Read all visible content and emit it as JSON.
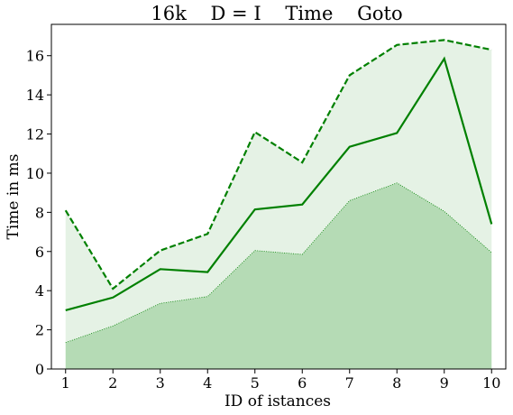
{
  "chart_data": {
    "type": "area",
    "title": "16k    D = I    Time    Goto",
    "xlabel": "ID of istances",
    "ylabel": "Time in ms",
    "x": [
      1,
      2,
      3,
      4,
      5,
      6,
      7,
      8,
      9,
      10
    ],
    "x_ticks": [
      "1",
      "2",
      "3",
      "4",
      "5",
      "6",
      "7",
      "8",
      "9",
      "10"
    ],
    "y_ticks": [
      "0",
      "2",
      "4",
      "6",
      "8",
      "10",
      "12",
      "14",
      "16"
    ],
    "xlim": [
      0.7,
      10.3
    ],
    "ylim": [
      0,
      17.6
    ],
    "series": [
      {
        "role": "max",
        "style": "dashed",
        "values": [
          8.1,
          4.1,
          6.05,
          6.9,
          12.1,
          10.55,
          15.0,
          16.55,
          16.8,
          16.3
        ]
      },
      {
        "role": "mean",
        "style": "solid",
        "values": [
          3.0,
          3.65,
          5.1,
          4.95,
          8.15,
          8.4,
          11.35,
          12.05,
          15.85,
          7.4
        ]
      },
      {
        "role": "min",
        "style": "dotted",
        "values": [
          1.35,
          2.2,
          3.35,
          3.7,
          6.05,
          5.85,
          8.6,
          9.5,
          8.05,
          5.95
        ]
      }
    ],
    "colors": {
      "line": "#008000",
      "band_fill": "#e5f2e5",
      "min_fill": "#b5dbb5",
      "frame": "#000000"
    },
    "grid": false
  }
}
